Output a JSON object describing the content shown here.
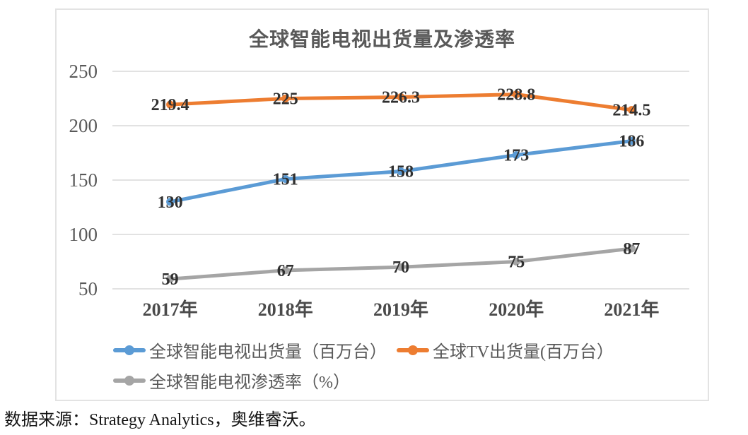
{
  "title": "全球智能电视出货量及渗透率",
  "source": "数据来源：Strategy Analytics，奥维睿沃。",
  "chart_data": {
    "type": "line",
    "title": "全球智能电视出货量及渗透率",
    "categories": [
      "2017年",
      "2018年",
      "2019年",
      "2020年",
      "2021年"
    ],
    "series": [
      {
        "name": "全球智能电视出货量（百万台）",
        "values": [
          130,
          151,
          158,
          173,
          186
        ],
        "color": "#5B9BD5"
      },
      {
        "name": "全球TV出货量(百万台）",
        "values": [
          219.4,
          225,
          226.3,
          228.8,
          214.5
        ],
        "color": "#ED7D31"
      },
      {
        "name": "全球智能电视渗透率（%）",
        "values": [
          59,
          67,
          70,
          75,
          87
        ],
        "color": "#A5A5A5"
      }
    ],
    "xlabel": "",
    "ylabel": "",
    "ylim": [
      50,
      250
    ],
    "ytick_step": 50,
    "yticks": [
      50,
      100,
      150,
      200,
      250
    ],
    "grid": true,
    "grid_color": "#D9D9D9",
    "tick_color": "#595959",
    "data_label_color": "#303030",
    "legend_position": "bottom-left",
    "line_width": 5,
    "marker": "circle"
  }
}
